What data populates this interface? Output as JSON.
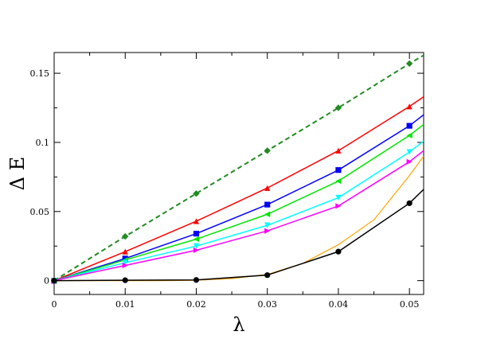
{
  "chart_data": {
    "type": "line",
    "title": "",
    "xlabel": "λ",
    "ylabel": "Δ E",
    "xlim": [
      0,
      0.052
    ],
    "ylim": [
      -0.01,
      0.165
    ],
    "xticks": [
      0,
      0.01,
      0.02,
      0.03,
      0.04,
      0.05
    ],
    "xtick_labels": [
      "0",
      "0.01",
      "0.02",
      "0.03",
      "0.04",
      "0.05"
    ],
    "yticks": [
      0,
      0.05,
      0.1,
      0.15
    ],
    "ytick_labels": [
      "0",
      "0.05",
      "0.1",
      "0.15"
    ],
    "grid": false,
    "legend": "none",
    "x": [
      0,
      0.01,
      0.02,
      0.03,
      0.04,
      0.05
    ],
    "series": [
      {
        "color": "#228b22",
        "marker": "diamond",
        "dash": true,
        "values": [
          0,
          0.032,
          0.063,
          0.094,
          0.125,
          0.157
        ],
        "extend_to": [
          0.052,
          0.163
        ]
      },
      {
        "color": "#ff0000",
        "marker": "triangle-up",
        "dash": false,
        "values": [
          0,
          0.021,
          0.043,
          0.067,
          0.094,
          0.126
        ],
        "extend_to": [
          0.052,
          0.133
        ]
      },
      {
        "color": "#0000ff",
        "marker": "square",
        "dash": false,
        "values": [
          0,
          0.016,
          0.034,
          0.055,
          0.08,
          0.112
        ],
        "extend_to": [
          0.052,
          0.12
        ]
      },
      {
        "color": "#00e600",
        "marker": "triangle-left",
        "dash": false,
        "values": [
          0,
          0.015,
          0.03,
          0.048,
          0.072,
          0.105
        ],
        "extend_to": [
          0.052,
          0.113
        ]
      },
      {
        "color": "#00ffff",
        "marker": "triangle-down",
        "dash": false,
        "values": [
          0,
          0.013,
          0.025,
          0.04,
          0.06,
          0.093
        ],
        "extend_to": [
          0.052,
          0.101
        ]
      },
      {
        "color": "#ff00ff",
        "marker": "triangle-right",
        "dash": false,
        "values": [
          0,
          0.011,
          0.022,
          0.036,
          0.054,
          0.086
        ],
        "extend_to": [
          0.052,
          0.094
        ]
      },
      {
        "color": "#000000",
        "marker": "circle",
        "dash": false,
        "values": [
          0,
          0.0003,
          0.0005,
          0.004,
          0.021,
          0.056
        ],
        "extend_to": [
          0.052,
          0.066
        ]
      }
    ],
    "fit_curve": {
      "color": "#ffa500",
      "x": [
        0,
        0.005,
        0.01,
        0.015,
        0.02,
        0.025,
        0.03,
        0.035,
        0.04,
        0.045,
        0.05,
        0.052
      ],
      "values": [
        0,
        0,
        0,
        0,
        0.0003,
        0.0015,
        0.0045,
        0.0125,
        0.026,
        0.044,
        0.076,
        0.09
      ]
    }
  }
}
